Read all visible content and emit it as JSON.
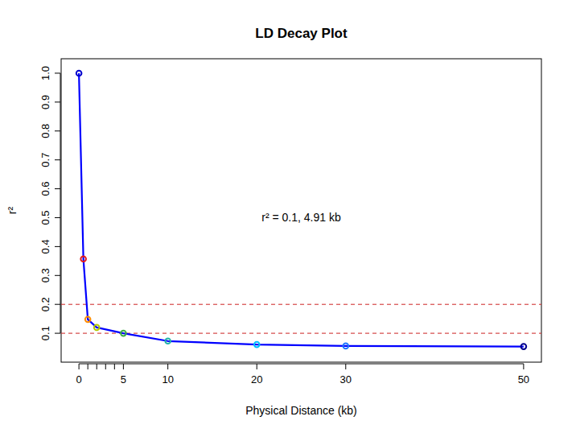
{
  "chart_data": {
    "type": "line",
    "title": "LD Decay Plot",
    "x_label": "Physical Distance (kb)",
    "y_label": "r²",
    "x": [
      0,
      0.5,
      1,
      2,
      5,
      10,
      20,
      30,
      50
    ],
    "values": [
      1.0,
      0.357,
      0.148,
      0.12,
      0.1,
      0.073,
      0.061,
      0.056,
      0.054
    ],
    "color": "#0000ff",
    "colors": [
      "#0000cd",
      "#e31a1c",
      "#ff8c00",
      "#b5c800",
      "#3cb043",
      "#20b2aa",
      "#00bfff",
      "#1e78ff",
      "#00008b"
    ],
    "marker": "circle",
    "line_style": "solid",
    "xlim": [
      -2,
      52
    ],
    "ylim": [
      0,
      1.05
    ],
    "xticks": [
      0,
      {
        "value": 1,
        "label": null
      },
      {
        "value": 2,
        "label": null
      },
      {
        "value": 3,
        "label": null
      },
      {
        "value": 4,
        "label": null
      },
      5,
      10,
      20,
      30,
      50
    ],
    "yticks": [
      0.1,
      0.2,
      0.3,
      0.4,
      0.5,
      0.6,
      0.7,
      0.8,
      0.9,
      {
        "value": 1,
        "label": "1.0"
      }
    ],
    "hlines": [
      {
        "value": 0.2,
        "color": "#cc2222",
        "line_style": "dashed"
      },
      {
        "value": 0.1,
        "color": "#cc2222",
        "line_style": "dashed"
      }
    ],
    "annotations": [
      {
        "text": "r² = 0.1, 4.91 kb",
        "x": 25,
        "y": 0.5
      }
    ],
    "grid": false
  }
}
